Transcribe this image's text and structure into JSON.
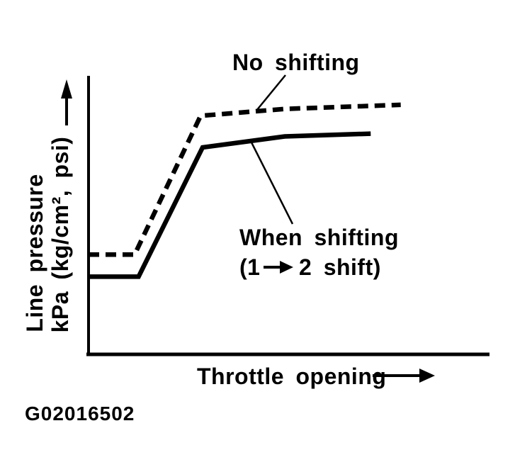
{
  "figure": {
    "caption": "G02016502",
    "background_color": "#ffffff",
    "ink_color": "#000000"
  },
  "chart_data": {
    "type": "line",
    "title": "",
    "xlabel": "Throttle opening",
    "ylabel": "Line pressure kPa (kg/cm², psi)",
    "ylabel_lines": [
      "Line pressure",
      "kPa (kg/cm², psi)"
    ],
    "x_range": [
      0,
      100
    ],
    "y_range": [
      0,
      100
    ],
    "grid": false,
    "axes_style": "qualitative: no tick marks or tick labels; arrows on axis labels indicate increasing direction",
    "legend_position": "inline annotations with leader lines pointing to curves",
    "series": [
      {
        "name": "No shifting",
        "line_style": "dashed",
        "points": [
          [
            0,
            36
          ],
          [
            11.5,
            36
          ],
          [
            28,
            86.5
          ],
          [
            49,
            89
          ],
          [
            78,
            90.5
          ]
        ]
      },
      {
        "name": "When shifting (1 → 2 shift)",
        "line_style": "solid",
        "points": [
          [
            0,
            28
          ],
          [
            12.5,
            28
          ],
          [
            28.5,
            75
          ],
          [
            49,
            79
          ],
          [
            70.5,
            80
          ]
        ]
      }
    ]
  },
  "annotations": {
    "no_shifting_label": "No shifting",
    "when_shifting_line1": "When shifting",
    "when_shifting_prefix": "(1",
    "when_shifting_suffix": "2 shift)"
  }
}
